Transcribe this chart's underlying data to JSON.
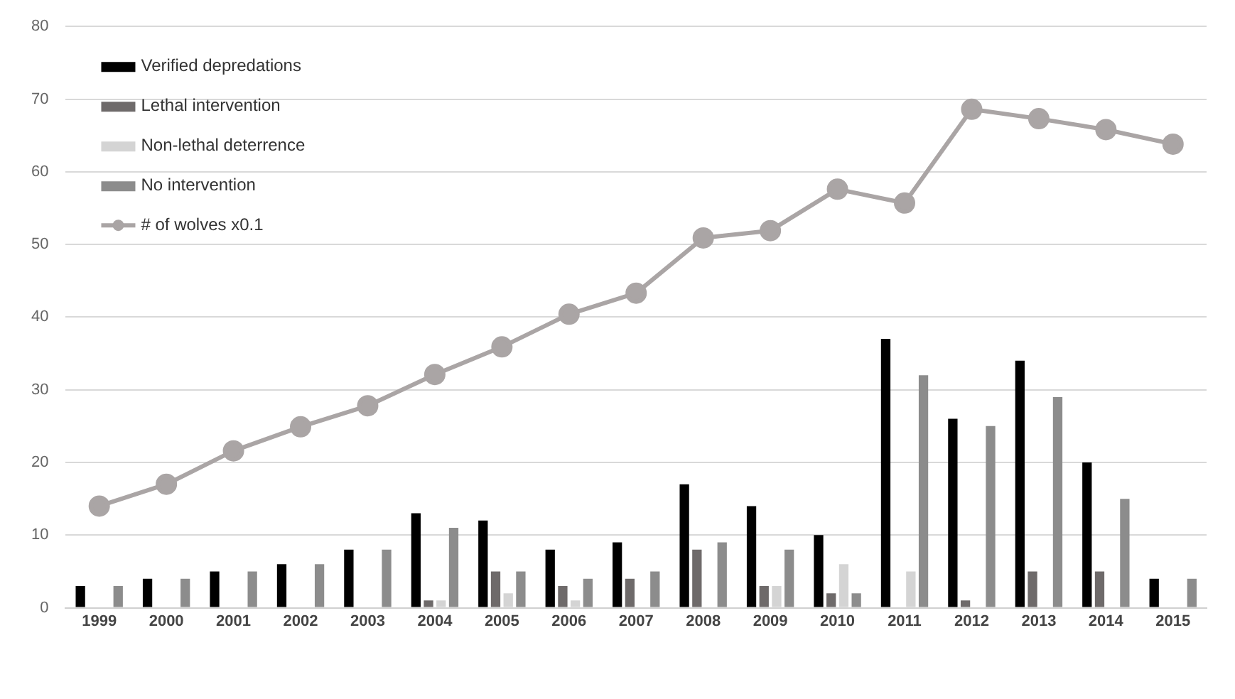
{
  "chart_data": {
    "type": "bar",
    "categories": [
      "1999",
      "2000",
      "2001",
      "2002",
      "2003",
      "2004",
      "2005",
      "2006",
      "2007",
      "2008",
      "2009",
      "2010",
      "2011",
      "2012",
      "2013",
      "2014",
      "2015"
    ],
    "series": [
      {
        "name": "Verified depredations",
        "color": "#000000",
        "values": [
          3,
          4,
          5,
          6,
          8,
          13,
          12,
          8,
          9,
          17,
          14,
          10,
          37,
          26,
          34,
          20,
          4
        ]
      },
      {
        "name": "Lethal intervention",
        "color": "#6e6a6a",
        "values": [
          0,
          0,
          0,
          0,
          0,
          1,
          5,
          3,
          4,
          8,
          3,
          2,
          0,
          1,
          5,
          5,
          0
        ]
      },
      {
        "name": "Non-lethal deterrence",
        "color": "#d4d4d4",
        "values": [
          0,
          0,
          0,
          0,
          0,
          1,
          2,
          1,
          0,
          0,
          3,
          6,
          5,
          0,
          0,
          0,
          0
        ]
      },
      {
        "name": "No intervention",
        "color": "#8c8c8c",
        "values": [
          3,
          4,
          5,
          6,
          8,
          11,
          5,
          4,
          5,
          9,
          8,
          2,
          32,
          25,
          29,
          15,
          4
        ]
      },
      {
        "name": "# of wolves x0.1",
        "type": "line",
        "color": "#aaa5a5",
        "marker": "circle",
        "values": [
          14,
          17,
          21.6,
          24.9,
          27.8,
          32.1,
          35.9,
          40.4,
          43.3,
          50.9,
          51.9,
          57.6,
          55.7,
          68.6,
          67.3,
          65.8,
          63.8
        ]
      }
    ],
    "ylim": [
      0,
      80
    ],
    "yticks": [
      0,
      10,
      20,
      30,
      40,
      50,
      60,
      70,
      80
    ],
    "grid": "y",
    "legend": "top left"
  }
}
